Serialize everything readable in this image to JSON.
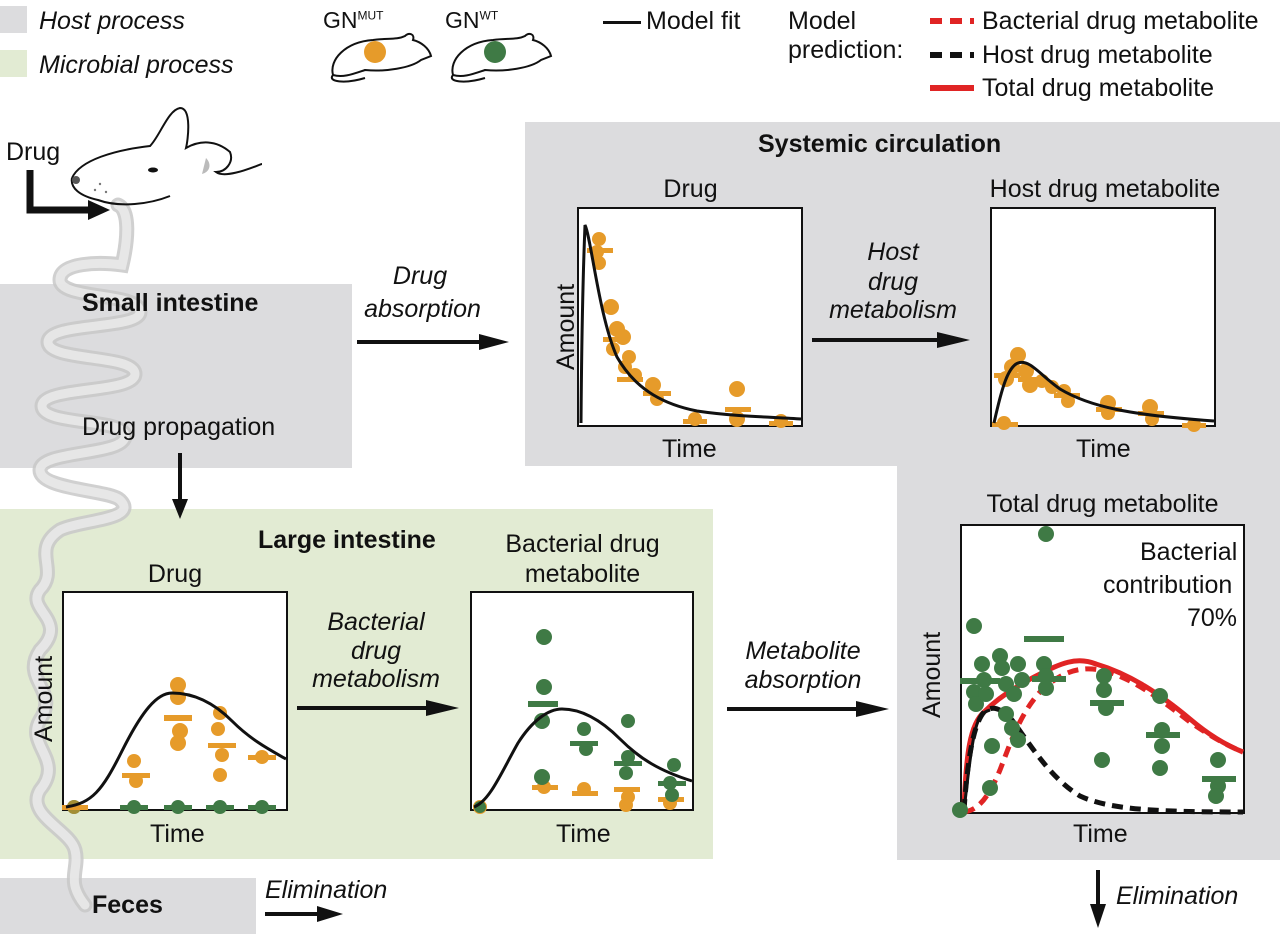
{
  "colors": {
    "host_bg": "#dcdcde",
    "microbial_bg": "#e2ebd3",
    "gn_mut": "#e69b2a",
    "gn_wt": "#3f7a45",
    "bacterial_pred": "#e02424",
    "host_pred": "#111111",
    "total_pred": "#e02424"
  },
  "legend": {
    "host_process": "Host process",
    "microbial_process": "Microbial process",
    "gn_prefix": "GN",
    "gn_mut_sup": "MUT",
    "gn_wt_sup": "WT",
    "model_fit": "Model fit",
    "model_prediction_line1": "Model",
    "model_prediction_line2": "prediction:",
    "bacterial_metabolite": "Bacterial drug metabolite",
    "host_metabolite": "Host drug metabolite",
    "total_metabolite": "Total drug metabolite"
  },
  "labels": {
    "drug_input": "Drug",
    "small_intestine": "Small intestine",
    "drug_propagation": "Drug propagation",
    "drug_absorption_1": "Drug",
    "drug_absorption_2": "absorption",
    "systemic_circulation": "Systemic circulation",
    "host_metabolism_1": "Host",
    "host_metabolism_2": "drug",
    "host_metabolism_3": "metabolism",
    "large_intestine": "Large intestine",
    "bacterial_metabolism_1": "Bacterial",
    "bacterial_metabolism_2": "drug",
    "bacterial_metabolism_3": "metabolism",
    "metabolite_absorption_1": "Metabolite",
    "metabolite_absorption_2": "absorption",
    "feces": "Feces",
    "elimination_feces": "Elimination",
    "elimination_systemic": "Elimination"
  },
  "plots": {
    "systemic_drug": {
      "title": "Drug",
      "xlabel": "Time",
      "ylabel": "Amount"
    },
    "systemic_host_metabolite": {
      "title": "Host drug metabolite",
      "xlabel": "Time"
    },
    "large_drug": {
      "title": "Drug",
      "xlabel": "Time",
      "ylabel": "Amount"
    },
    "large_bacterial_metabolite": {
      "title_1": "Bacterial drug",
      "title_2": "metabolite",
      "xlabel": "Time"
    },
    "total_metabolite": {
      "title": "Total drug metabolite",
      "xlabel": "Time",
      "ylabel": "Amount",
      "annotation_1": "Bacterial",
      "annotation_2": "contribution",
      "annotation_3": "70%"
    }
  }
}
